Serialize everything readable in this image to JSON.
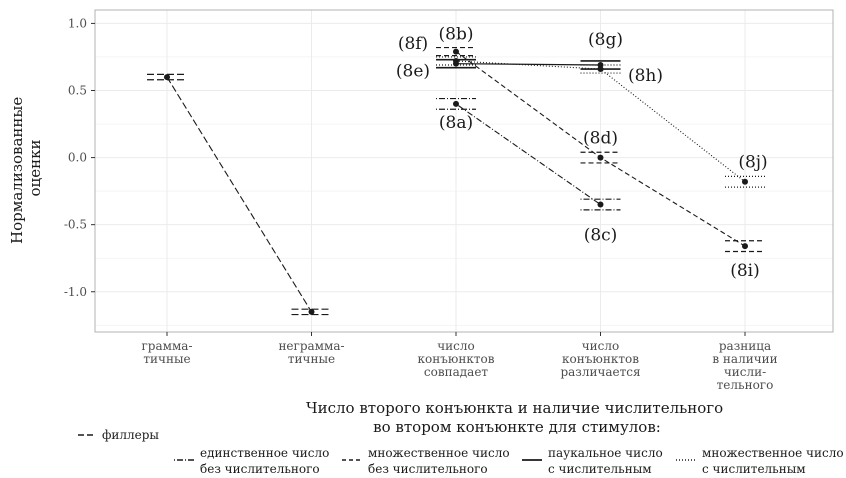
{
  "chart_data": {
    "type": "line",
    "ylabel": [
      "Нормализованные",
      "оценки"
    ],
    "xlabel": [
      "Число второго конъюнкта и наличие числительного",
      "во втором конъюнкте для стимулов:"
    ],
    "ylim": [
      -1.3,
      1.1
    ],
    "yticks": [
      1.0,
      0.5,
      0.0,
      -0.5,
      -1.0
    ],
    "ytick_labels": [
      "1.0",
      "0.5",
      "0.0",
      "-0.5",
      "-1.0"
    ],
    "grid": true,
    "legend_position": "bottom",
    "categories": [
      [
        "грамма-",
        "тичные"
      ],
      [
        "неграмма-",
        "тичные"
      ],
      [
        "число",
        "конъюнктов",
        "совпадает"
      ],
      [
        "число",
        "конъюнктов",
        "различается"
      ],
      [
        "разница",
        "в наличии",
        "числи-",
        "тельного"
      ]
    ],
    "series": [
      {
        "key": "fillers",
        "dash": "longdash",
        "points": [
          {
            "x": 0,
            "y": 0.6,
            "err": 0.02
          },
          {
            "x": 1,
            "y": -1.15,
            "err": 0.02
          }
        ]
      },
      {
        "key": "sg_no_num",
        "dash": "dotdash",
        "points": [
          {
            "x": 2,
            "y": 0.4,
            "err": 0.04,
            "label": "(8a)"
          },
          {
            "x": 3,
            "y": -0.35,
            "err": 0.04,
            "label": "(8c)"
          }
        ]
      },
      {
        "key": "pl_no_num",
        "dash": "dashed",
        "points": [
          {
            "x": 2,
            "y": 0.79,
            "err": 0.03,
            "label": "(8b)"
          },
          {
            "x": 3,
            "y": 0.0,
            "err": 0.04,
            "label": "(8d)"
          },
          {
            "x": 4,
            "y": -0.66,
            "err": 0.04,
            "label": "(8i)"
          }
        ]
      },
      {
        "key": "pauc_num",
        "dash": "solid",
        "points": [
          {
            "x": 2,
            "y": 0.7,
            "err": 0.03,
            "label": "(8e)"
          },
          {
            "x": 3,
            "y": 0.69,
            "err": 0.03,
            "label": "(8g)"
          }
        ]
      },
      {
        "key": "pl_num",
        "dash": "dotted",
        "points": [
          {
            "x": 2,
            "y": 0.72,
            "err": 0.03,
            "label": "(8f)"
          },
          {
            "x": 3,
            "y": 0.66,
            "err": 0.03,
            "label": "(8h)"
          },
          {
            "x": 4,
            "y": -0.18,
            "err": 0.04,
            "label": "(8j)"
          }
        ]
      }
    ],
    "legend": {
      "fillers": "филлеры",
      "sg_no_num": [
        "единственное число",
        "без числительного"
      ],
      "pl_no_num": [
        "множественное число",
        "без числительного"
      ],
      "pauc_num": [
        "паукальное число",
        "с числительным"
      ],
      "pl_num": [
        "множественное число",
        "с числительным"
      ]
    },
    "colors": {
      "panel_border": "#b3b3b3",
      "grid": "#ebebeb",
      "ink": "#1a1a1a"
    }
  }
}
